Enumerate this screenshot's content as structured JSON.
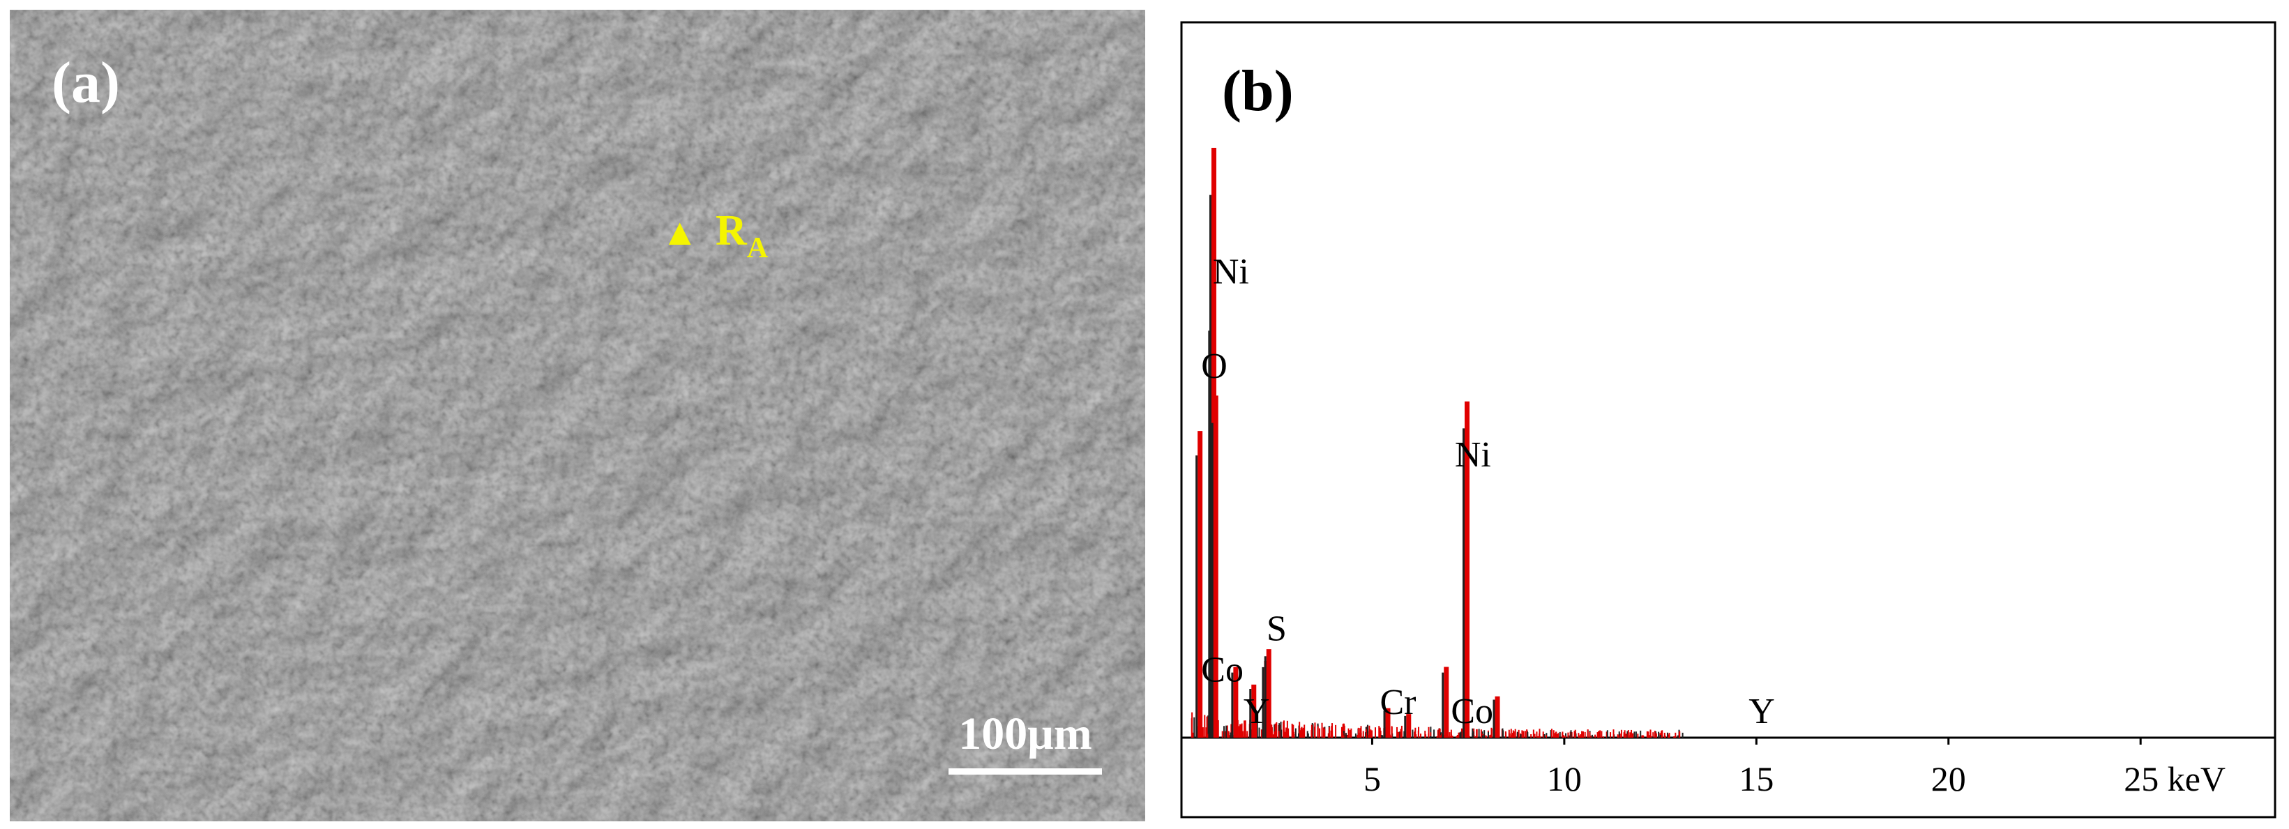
{
  "panel_a": {
    "label": "(a)",
    "marker_symbol": "▲",
    "marker_label_main": "R",
    "marker_label_sub": "A",
    "marker_color": "#f5f500",
    "scale_bar_label": "100μm"
  },
  "panel_b": {
    "label": "(b)"
  },
  "chart_data": {
    "type": "line",
    "title": "",
    "xlabel": "",
    "ylabel": "",
    "x_unit": "keV",
    "xlim": [
      0,
      28.5
    ],
    "ylim": [
      0,
      1
    ],
    "ticks": [
      {
        "value": 5,
        "label": "5"
      },
      {
        "value": 10,
        "label": "10"
      },
      {
        "value": 15,
        "label": "15"
      },
      {
        "value": 20,
        "label": "20"
      },
      {
        "value": 25,
        "label": "25 keV"
      }
    ],
    "series_colors": [
      "#e00000",
      "#202020"
    ],
    "peaks": [
      {
        "x": 0.52,
        "y": 0.52
      },
      {
        "x": 0.85,
        "y": 0.75
      },
      {
        "x": 0.88,
        "y": 1.0
      },
      {
        "x": 0.93,
        "y": 0.58
      },
      {
        "x": 1.45,
        "y": 0.12
      },
      {
        "x": 1.92,
        "y": 0.09
      },
      {
        "x": 2.25,
        "y": 0.13
      },
      {
        "x": 2.31,
        "y": 0.15
      },
      {
        "x": 5.41,
        "y": 0.05
      },
      {
        "x": 5.95,
        "y": 0.04
      },
      {
        "x": 6.93,
        "y": 0.12
      },
      {
        "x": 7.47,
        "y": 0.57
      },
      {
        "x": 8.26,
        "y": 0.07
      }
    ],
    "annotations": [
      {
        "text": "Ni",
        "x": 0.85,
        "y": 0.77
      },
      {
        "text": "O",
        "x": 0.55,
        "y": 0.61
      },
      {
        "text": "Ni",
        "x": 7.15,
        "y": 0.46
      },
      {
        "text": "S",
        "x": 2.25,
        "y": 0.165
      },
      {
        "text": "Co",
        "x": 0.55,
        "y": 0.095
      },
      {
        "text": "Y",
        "x": 1.65,
        "y": 0.025
      },
      {
        "text": "Cr",
        "x": 5.2,
        "y": 0.04
      },
      {
        "text": "Co",
        "x": 7.05,
        "y": 0.025
      },
      {
        "text": "Y",
        "x": 14.8,
        "y": 0.025
      }
    ]
  }
}
